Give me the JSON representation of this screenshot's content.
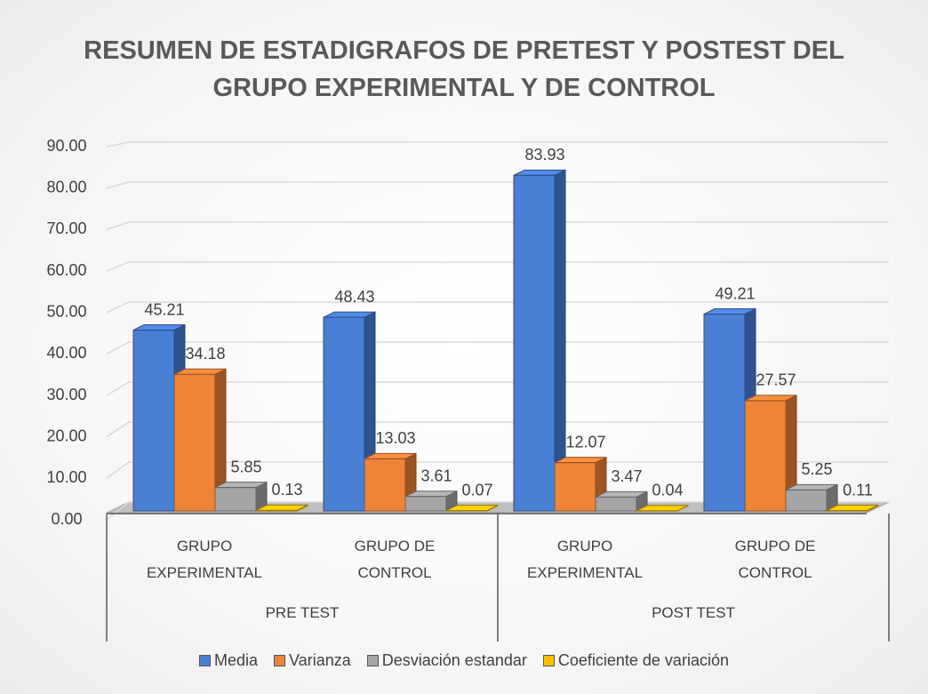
{
  "chart_data": {
    "type": "bar3d",
    "title": "RESUMEN DE ESTADIGRAFOS DE PRETEST Y POSTEST DEL GRUPO EXPERIMENTAL Y DE CONTROL",
    "categories": [
      "GRUPO EXPERIMENTAL",
      "GRUPO DE CONTROL",
      "GRUPO EXPERIMENTAL",
      "GRUPO DE CONTROL"
    ],
    "groups": [
      "PRE TEST",
      "POST TEST"
    ],
    "series": [
      {
        "name": "Media",
        "color": "#4a7fd6",
        "values": [
          45.21,
          48.43,
          83.93,
          49.21
        ]
      },
      {
        "name": "Varianza",
        "color": "#ef8338",
        "values": [
          34.18,
          13.03,
          12.07,
          27.57
        ]
      },
      {
        "name": "Desviación estandar",
        "color": "#a5a5a5",
        "values": [
          5.85,
          3.61,
          3.47,
          5.25
        ]
      },
      {
        "name": "Coeficiente de variación",
        "color": "#ffc000",
        "values": [
          0.13,
          0.07,
          0.04,
          0.11
        ]
      }
    ],
    "ylim": [
      0,
      90
    ],
    "yticks": [
      {
        "value": 0,
        "label": "0.00"
      },
      {
        "value": 10,
        "label": "10.00"
      },
      {
        "value": 20,
        "label": "20.00"
      },
      {
        "value": 30,
        "label": "30.00"
      },
      {
        "value": 40,
        "label": "40.00"
      },
      {
        "value": 50,
        "label": "50.00"
      },
      {
        "value": 60,
        "label": "60.00"
      },
      {
        "value": 70,
        "label": "70.00"
      },
      {
        "value": 80,
        "label": "80.00"
      },
      {
        "value": 90,
        "label": "90.00"
      }
    ],
    "grid": true,
    "legend": "bottom"
  }
}
